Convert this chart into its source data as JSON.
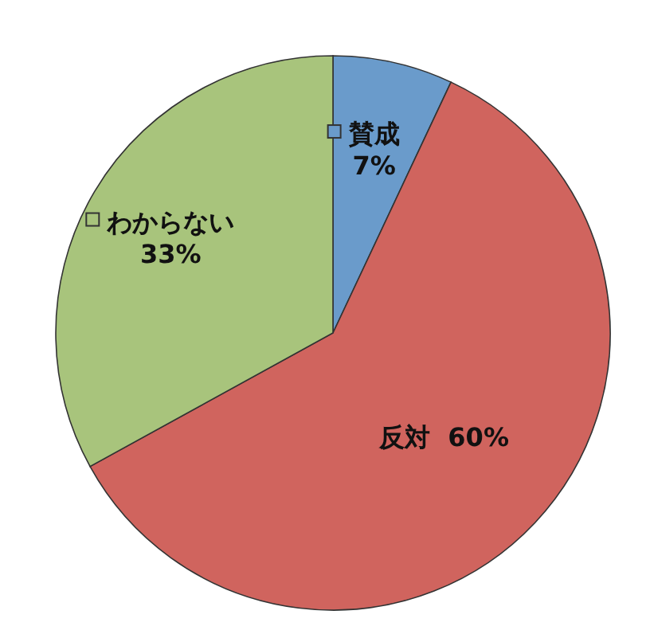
{
  "chart_data": {
    "type": "pie",
    "categories": [
      "賛成",
      "反対",
      "わからない"
    ],
    "values": [
      7,
      60,
      33
    ],
    "colors": [
      "#6a9bcb",
      "#d0645e",
      "#a8c47c"
    ],
    "value_labels": [
      "7%",
      "60%",
      "33%"
    ],
    "legend": "top left"
  }
}
